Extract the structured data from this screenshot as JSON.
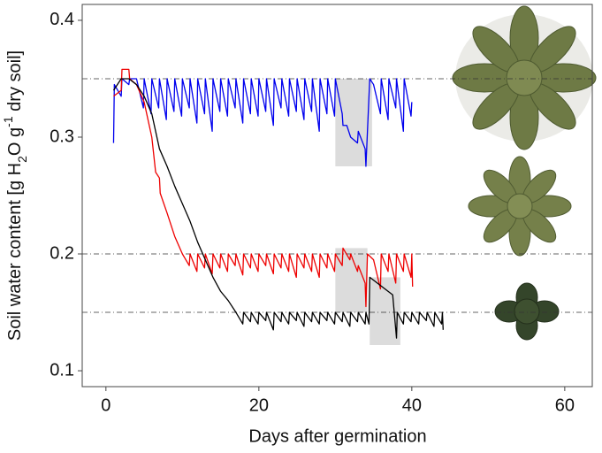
{
  "chart_data": {
    "type": "line",
    "xlabel": "Days after germination",
    "ylabel_parts": [
      "Soil water content [g H",
      "2",
      "O g",
      "-1",
      " dry soil]"
    ],
    "xlim": [
      -3.1,
      63.6
    ],
    "ylim": [
      0.0864,
      0.4136
    ],
    "xticks": [
      0,
      20,
      40,
      60
    ],
    "yticks": [
      {
        "value": 0.1,
        "label": "0.1"
      },
      {
        "value": 0.2,
        "label": "0.2"
      },
      {
        "value": 0.3,
        "label": "0.3"
      },
      {
        "value": 0.4,
        "label": "0.4"
      }
    ],
    "reference_lines": [
      0.35,
      0.2,
      0.15
    ],
    "shaded_regions": [
      {
        "x": [
          30,
          34.8
        ],
        "y": [
          0.275,
          0.35
        ]
      },
      {
        "x": [
          30,
          34.2
        ],
        "y": [
          0.15,
          0.205
        ]
      },
      {
        "x": [
          34.5,
          38.5
        ],
        "y": [
          0.122,
          0.18
        ]
      }
    ],
    "series": [
      {
        "color": "#0000ee",
        "x": [
          1,
          1.1,
          2,
          2.1,
          3,
          3.1,
          4,
          4.9,
          5,
          5.9,
          6,
          6.9,
          7,
          7.9,
          8,
          8.9,
          9,
          9.9,
          10,
          10.9,
          11,
          11.9,
          12,
          12.9,
          13,
          13.9,
          14,
          14.9,
          15,
          15.9,
          16,
          16.9,
          17,
          17.9,
          18,
          18.9,
          19,
          19.9,
          20,
          20.9,
          21,
          21.9,
          22,
          22.9,
          23,
          23.9,
          24,
          24.9,
          25,
          25.9,
          26,
          26.9,
          27,
          27.9,
          28,
          28.9,
          29,
          29.9,
          30,
          30.9,
          31,
          31.5,
          32,
          32.9,
          33,
          33.9,
          34,
          34.5,
          35,
          35.9,
          36,
          36.9,
          37,
          37.9,
          38,
          38.9,
          39,
          39.9,
          40
        ],
        "y": [
          0.295,
          0.345,
          0.335,
          0.35,
          0.345,
          0.35,
          0.35,
          0.325,
          0.35,
          0.32,
          0.35,
          0.325,
          0.35,
          0.315,
          0.35,
          0.322,
          0.35,
          0.318,
          0.35,
          0.325,
          0.35,
          0.312,
          0.35,
          0.32,
          0.35,
          0.305,
          0.35,
          0.322,
          0.35,
          0.318,
          0.35,
          0.325,
          0.35,
          0.312,
          0.35,
          0.32,
          0.35,
          0.318,
          0.35,
          0.322,
          0.35,
          0.31,
          0.35,
          0.325,
          0.35,
          0.318,
          0.35,
          0.322,
          0.35,
          0.315,
          0.35,
          0.322,
          0.35,
          0.305,
          0.35,
          0.32,
          0.35,
          0.318,
          0.35,
          0.32,
          0.31,
          0.31,
          0.3,
          0.295,
          0.305,
          0.29,
          0.275,
          0.35,
          0.345,
          0.32,
          0.35,
          0.315,
          0.35,
          0.325,
          0.35,
          0.305,
          0.35,
          0.318,
          0.33
        ]
      },
      {
        "color": "#ee0000",
        "x": [
          1,
          2,
          2.1,
          3,
          3.1,
          4,
          5,
          6,
          6.5,
          7,
          7.1,
          8,
          9,
          10,
          10.9,
          11,
          11.9,
          12,
          12.9,
          13,
          13.9,
          14,
          14.9,
          15,
          15.9,
          16,
          16.9,
          17,
          17.9,
          18,
          18.9,
          19,
          19.9,
          20,
          20.9,
          21,
          21.9,
          22,
          22.9,
          23,
          23.9,
          24,
          24.9,
          25,
          25.9,
          26,
          26.9,
          27,
          27.9,
          28,
          28.9,
          29,
          29.9,
          30,
          30.9,
          31,
          31.9,
          32,
          32.9,
          33,
          33.9,
          34,
          34.2,
          35,
          35.9,
          36,
          36.9,
          37,
          37.9,
          38,
          38.9,
          39,
          39.9,
          40,
          40.1
        ],
        "y": [
          0.335,
          0.34,
          0.358,
          0.358,
          0.35,
          0.345,
          0.33,
          0.3,
          0.27,
          0.265,
          0.252,
          0.235,
          0.215,
          0.2,
          0.19,
          0.2,
          0.185,
          0.2,
          0.188,
          0.2,
          0.183,
          0.2,
          0.188,
          0.2,
          0.185,
          0.2,
          0.19,
          0.2,
          0.182,
          0.2,
          0.188,
          0.2,
          0.185,
          0.2,
          0.19,
          0.2,
          0.183,
          0.2,
          0.188,
          0.2,
          0.185,
          0.2,
          0.18,
          0.2,
          0.188,
          0.2,
          0.185,
          0.2,
          0.18,
          0.2,
          0.188,
          0.2,
          0.185,
          0.2,
          0.19,
          0.205,
          0.195,
          0.2,
          0.185,
          0.19,
          0.175,
          0.155,
          0.2,
          0.195,
          0.17,
          0.2,
          0.185,
          0.2,
          0.175,
          0.2,
          0.185,
          0.2,
          0.18,
          0.2,
          0.172
        ]
      },
      {
        "color": "#000000",
        "x": [
          1,
          2,
          3,
          4,
          5,
          6,
          7,
          8,
          9,
          10,
          11,
          12,
          13,
          14,
          15,
          16,
          17,
          17.9,
          18,
          18.9,
          19,
          19.9,
          20,
          20.9,
          21,
          21.9,
          22,
          22.9,
          23,
          23.9,
          24,
          24.9,
          25,
          25.9,
          26,
          26.9,
          27,
          27.9,
          28,
          28.9,
          29,
          29.9,
          30,
          30.9,
          31,
          31.9,
          32,
          32.9,
          33,
          33.9,
          34,
          34.4,
          34.5,
          35.5,
          36.5,
          37.5,
          38,
          38.1,
          38.9,
          39,
          39.9,
          40,
          40.9,
          41,
          41.9,
          42,
          42.9,
          43,
          43.9,
          44,
          44.1
        ],
        "y": [
          0.34,
          0.35,
          0.35,
          0.345,
          0.335,
          0.32,
          0.29,
          0.275,
          0.258,
          0.243,
          0.228,
          0.21,
          0.195,
          0.18,
          0.168,
          0.16,
          0.15,
          0.14,
          0.15,
          0.142,
          0.15,
          0.14,
          0.15,
          0.143,
          0.15,
          0.135,
          0.15,
          0.142,
          0.15,
          0.14,
          0.15,
          0.143,
          0.15,
          0.138,
          0.15,
          0.142,
          0.15,
          0.14,
          0.15,
          0.143,
          0.15,
          0.14,
          0.15,
          0.142,
          0.15,
          0.138,
          0.15,
          0.142,
          0.15,
          0.14,
          0.15,
          0.14,
          0.18,
          0.175,
          0.17,
          0.165,
          0.128,
          0.15,
          0.14,
          0.15,
          0.142,
          0.15,
          0.14,
          0.15,
          0.143,
          0.15,
          0.138,
          0.15,
          0.14,
          0.15,
          0.135
        ]
      }
    ]
  }
}
